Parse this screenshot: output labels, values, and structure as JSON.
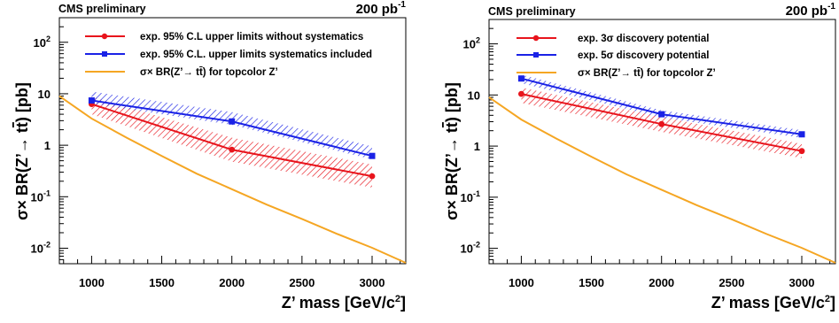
{
  "chart_data": [
    {
      "type": "line",
      "corner_label": "CMS preliminary",
      "luminosity": "200 pb",
      "luminosity_exp": "-1",
      "xlabel": "Z’ mass [GeV/c",
      "xlabel_exp": "2",
      "xlabel_end": "]",
      "ylabel_prefix": "σ× BR(Z’→ t",
      "ylabel_t": "t",
      "ylabel_suffix": ") [pb]",
      "x_scale": "linear",
      "y_scale": "log",
      "xlim": [
        770,
        3240
      ],
      "ylim": [
        0.005,
        300
      ],
      "x_ticks": [
        1000,
        1500,
        2000,
        2500,
        3000
      ],
      "y_ticks": [
        {
          "base": "10",
          "exp": "-2",
          "value": 0.01
        },
        {
          "base": "10",
          "exp": "-1",
          "value": 0.1
        },
        {
          "base": "1",
          "exp": "",
          "value": 1
        },
        {
          "base": "10",
          "exp": "",
          "value": 10
        },
        {
          "base": "10",
          "exp": "2",
          "value": 100
        }
      ],
      "grid": false,
      "legend_position": "top",
      "series": [
        {
          "name": "exp. 95% C.L upper limits without systematics",
          "color": "#e8141c",
          "marker": "circle",
          "hatched": true,
          "x": [
            1000,
            2000,
            3000
          ],
          "y": [
            6.3,
            0.82,
            0.25
          ],
          "band_low": [
            4.0,
            0.48,
            0.15
          ],
          "band_high": [
            8.8,
            1.4,
            0.42
          ]
        },
        {
          "name": "exp. 95% C.L. upper limits systematics included",
          "color": "#1a22e6",
          "marker": "square",
          "hatched": true,
          "x": [
            1000,
            2000,
            3000
          ],
          "y": [
            7.4,
            2.9,
            0.62
          ],
          "band_low": [
            6.4,
            2.5,
            0.53
          ],
          "band_high": [
            11.0,
            4.4,
            0.95
          ]
        },
        {
          "name": "σ× BR(Z’→ tt̄) for topcolor Z’",
          "color": "#f5a623",
          "marker": "none",
          "hatched": false,
          "x": [
            770,
            1000,
            1250,
            1500,
            1750,
            2000,
            2250,
            2500,
            2750,
            3000,
            3240
          ],
          "y": [
            9.0,
            3.3,
            1.4,
            0.62,
            0.28,
            0.14,
            0.07,
            0.037,
            0.019,
            0.0102,
            0.0052
          ]
        }
      ]
    },
    {
      "type": "line",
      "corner_label": "CMS preliminary",
      "luminosity": "200 pb",
      "luminosity_exp": "-1",
      "xlabel": "Z’ mass [GeV/c",
      "xlabel_exp": "2",
      "xlabel_end": "]",
      "ylabel_prefix": "σ× BR(Z’→ t",
      "ylabel_t": "t",
      "ylabel_suffix": ") [pb]",
      "x_scale": "linear",
      "y_scale": "log",
      "xlim": [
        770,
        3240
      ],
      "ylim": [
        0.005,
        300
      ],
      "x_ticks": [
        1000,
        1500,
        2000,
        2500,
        3000
      ],
      "y_ticks": [
        {
          "base": "10",
          "exp": "-2",
          "value": 0.01
        },
        {
          "base": "10",
          "exp": "-1",
          "value": 0.1
        },
        {
          "base": "1",
          "exp": "",
          "value": 1
        },
        {
          "base": "10",
          "exp": "",
          "value": 10
        },
        {
          "base": "10",
          "exp": "2",
          "value": 100
        }
      ],
      "grid": false,
      "legend_position": "top",
      "series": [
        {
          "name": "exp. 3σ discovery potential",
          "color": "#e8141c",
          "marker": "circle",
          "hatched": true,
          "x": [
            1000,
            2000,
            3000
          ],
          "y": [
            10.5,
            2.7,
            0.8
          ],
          "band_low": [
            7.0,
            1.9,
            0.58
          ],
          "band_high": [
            14.0,
            3.7,
            1.1
          ]
        },
        {
          "name": "exp. 5σ discovery potential",
          "color": "#1a22e6",
          "marker": "square",
          "hatched": true,
          "x": [
            1000,
            2000,
            3000
          ],
          "y": [
            21.0,
            4.2,
            1.7
          ],
          "band_low": [
            17.0,
            3.6,
            1.45
          ],
          "band_high": [
            25.0,
            5.0,
            2.05
          ]
        },
        {
          "name": "σ× BR(Z’→ tt̄) for topcolor Z’",
          "color": "#f5a623",
          "marker": "none",
          "hatched": false,
          "x": [
            770,
            1000,
            1250,
            1500,
            1750,
            2000,
            2250,
            2500,
            2750,
            3000,
            3240
          ],
          "y": [
            9.0,
            3.3,
            1.4,
            0.62,
            0.28,
            0.14,
            0.07,
            0.037,
            0.019,
            0.0102,
            0.0052
          ]
        }
      ]
    }
  ]
}
